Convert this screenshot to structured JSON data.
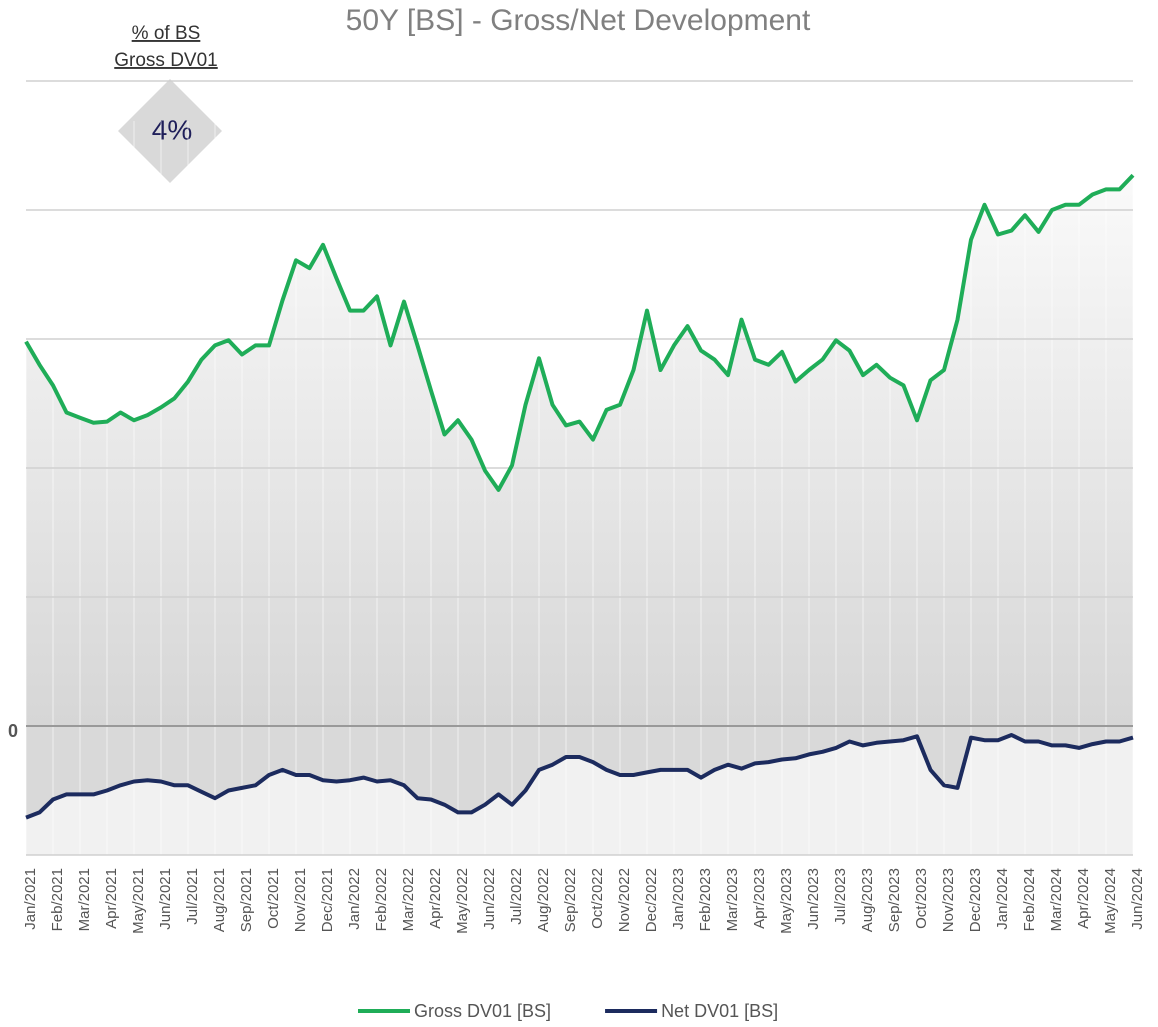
{
  "chart_data": {
    "type": "line",
    "title": "50Y [BS] - Gross/Net  Development",
    "annotation": {
      "lines": [
        "% of BS",
        "Gross DV01"
      ],
      "value": 4,
      "value_label": "4%"
    },
    "x": [
      0,
      0.5,
      1,
      1.5,
      2,
      2.5,
      3,
      3.5,
      4,
      4.5,
      5,
      5.5,
      6,
      6.5,
      7,
      7.5,
      8,
      8.5,
      9,
      9.5,
      10,
      10.5,
      11,
      11.5,
      12,
      12.5,
      13,
      13.5,
      14,
      14.5,
      15,
      15.5,
      16,
      16.5,
      17,
      17.5,
      18,
      18.5,
      19,
      19.5,
      20,
      20.5,
      21,
      21.5,
      22,
      22.5,
      23,
      23.5,
      24,
      24.5,
      25,
      25.5,
      26,
      26.5,
      27,
      27.5,
      28,
      28.5,
      29,
      29.5,
      30,
      30.5,
      31,
      31.5,
      32,
      32.5,
      33,
      33.5,
      34,
      34.5,
      35,
      35.5,
      36,
      36.5,
      37,
      37.5,
      38,
      38.5,
      39,
      39.5,
      40,
      40.5,
      41
    ],
    "series": [
      {
        "name": "Gross DV01  [BS]",
        "color": "#1fad58",
        "values": [
          2.98,
          2.8,
          2.64,
          2.43,
          2.39,
          2.35,
          2.36,
          2.43,
          2.37,
          2.41,
          2.47,
          2.54,
          2.67,
          2.84,
          2.95,
          2.99,
          2.88,
          2.95,
          2.95,
          3.3,
          3.61,
          3.55,
          3.73,
          3.47,
          3.22,
          3.22,
          3.33,
          2.95,
          3.29,
          2.95,
          2.6,
          2.26,
          2.37,
          2.22,
          1.98,
          1.83,
          2.02,
          2.49,
          2.85,
          2.49,
          2.33,
          2.36,
          2.22,
          2.45,
          2.49,
          2.76,
          3.22,
          2.76,
          2.95,
          3.1,
          2.91,
          2.84,
          2.72,
          3.15,
          2.84,
          2.8,
          2.9,
          2.67,
          2.76,
          2.84,
          2.99,
          2.91,
          2.72,
          2.8,
          2.7,
          2.64,
          2.37,
          2.68,
          2.76,
          3.15,
          3.77,
          4.04,
          3.81,
          3.84,
          3.96,
          3.83,
          4.0,
          4.04,
          4.04,
          4.12,
          4.16,
          4.16,
          4.27
        ]
      },
      {
        "name": "Net DV01 [BS]",
        "color": "#1c2b5e",
        "values": [
          -0.71,
          -0.67,
          -0.57,
          -0.53,
          -0.53,
          -0.53,
          -0.5,
          -0.46,
          -0.43,
          -0.42,
          -0.43,
          -0.46,
          -0.46,
          -0.51,
          -0.56,
          -0.5,
          -0.48,
          -0.46,
          -0.38,
          -0.34,
          -0.38,
          -0.38,
          -0.42,
          -0.43,
          -0.42,
          -0.4,
          -0.43,
          -0.42,
          -0.46,
          -0.56,
          -0.57,
          -0.61,
          -0.67,
          -0.67,
          -0.61,
          -0.53,
          -0.61,
          -0.5,
          -0.34,
          -0.3,
          -0.24,
          -0.24,
          -0.28,
          -0.34,
          -0.38,
          -0.38,
          -0.36,
          -0.34,
          -0.34,
          -0.34,
          -0.4,
          -0.34,
          -0.3,
          -0.33,
          -0.29,
          -0.28,
          -0.26,
          -0.25,
          -0.22,
          -0.2,
          -0.17,
          -0.12,
          -0.15,
          -0.13,
          -0.12,
          -0.11,
          -0.08,
          -0.34,
          -0.46,
          -0.48,
          -0.09,
          -0.11,
          -0.11,
          -0.07,
          -0.12,
          -0.12,
          -0.15,
          -0.15,
          -0.17,
          -0.14,
          -0.12,
          -0.12,
          -0.09
        ]
      }
    ],
    "xlim": [
      0,
      41
    ],
    "xticks": [
      {
        "value": 0,
        "label": "Jan/2021"
      },
      {
        "value": 1,
        "label": "Feb/2021"
      },
      {
        "value": 2,
        "label": "Mar/2021"
      },
      {
        "value": 3,
        "label": "Apr/2021"
      },
      {
        "value": 4,
        "label": "May/2021"
      },
      {
        "value": 5,
        "label": "Jun/2021"
      },
      {
        "value": 6,
        "label": "Jul/2021"
      },
      {
        "value": 7,
        "label": "Aug/2021"
      },
      {
        "value": 8,
        "label": "Sep/2021"
      },
      {
        "value": 9,
        "label": "Oct/2021"
      },
      {
        "value": 10,
        "label": "Nov/2021"
      },
      {
        "value": 11,
        "label": "Dec/2021"
      },
      {
        "value": 12,
        "label": "Jan/2022"
      },
      {
        "value": 13,
        "label": "Feb/2022"
      },
      {
        "value": 14,
        "label": "Mar/2022"
      },
      {
        "value": 15,
        "label": "Apr/2022"
      },
      {
        "value": 16,
        "label": "May/2022"
      },
      {
        "value": 17,
        "label": "Jun/2022"
      },
      {
        "value": 18,
        "label": "Jul/2022"
      },
      {
        "value": 19,
        "label": "Aug/2022"
      },
      {
        "value": 20,
        "label": "Sep/2022"
      },
      {
        "value": 21,
        "label": "Oct/2022"
      },
      {
        "value": 22,
        "label": "Nov/2022"
      },
      {
        "value": 23,
        "label": "Dec/2022"
      },
      {
        "value": 24,
        "label": "Jan/2023"
      },
      {
        "value": 25,
        "label": "Feb/2023"
      },
      {
        "value": 26,
        "label": "Mar/2023"
      },
      {
        "value": 27,
        "label": "Apr/2023"
      },
      {
        "value": 28,
        "label": "May/2023"
      },
      {
        "value": 29,
        "label": "Jun/2023"
      },
      {
        "value": 30,
        "label": "Jul/2023"
      },
      {
        "value": 31,
        "label": "Aug/2023"
      },
      {
        "value": 32,
        "label": "Sep/2023"
      },
      {
        "value": 33,
        "label": "Oct/2023"
      },
      {
        "value": 34,
        "label": "Nov/2023"
      },
      {
        "value": 35,
        "label": "Dec/2023"
      },
      {
        "value": 36,
        "label": "Jan/2024"
      },
      {
        "value": 37,
        "label": "Feb/2024"
      },
      {
        "value": 38,
        "label": "Mar/2024"
      },
      {
        "value": 39,
        "label": "Apr/2024"
      },
      {
        "value": 40,
        "label": "May/2024"
      },
      {
        "value": 41,
        "label": "Jun/2024"
      }
    ],
    "ylim": [
      -1,
      5
    ],
    "yticks": [
      0
    ],
    "ygrid": [
      -1,
      1,
      2,
      3,
      4,
      5
    ],
    "grid": true,
    "legend": "bottom"
  }
}
